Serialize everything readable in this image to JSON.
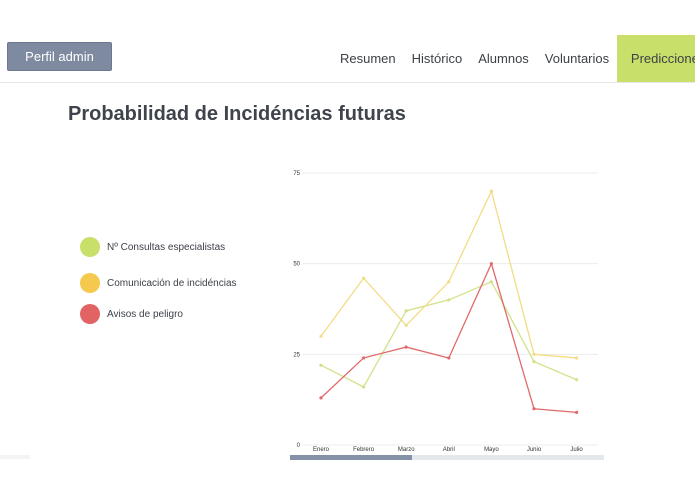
{
  "header": {
    "admin_button": "Perfil admin",
    "nav": [
      {
        "label": "Resumen"
      },
      {
        "label": "Histórico"
      },
      {
        "label": "Alumnos"
      },
      {
        "label": "Voluntarios"
      },
      {
        "label": "Predicciones",
        "active": true
      }
    ],
    "active_color": "#c8e06a"
  },
  "page": {
    "title": "Probabilidad de Incidéncias futuras"
  },
  "legend": [
    {
      "label": "Nº Consultas especialistas",
      "color": "#c8e06a"
    },
    {
      "label": "Comunicación de incidéncias",
      "color": "#f5c84e"
    },
    {
      "label": "Avisos de peligro",
      "color": "#e26363"
    }
  ],
  "chart_data": {
    "type": "line",
    "categories": [
      "Enero",
      "Febrero",
      "Marzo",
      "Abril",
      "Mayo",
      "Junio",
      "Julio"
    ],
    "y_ticks": [
      "0",
      "25",
      "50",
      "75"
    ],
    "ylim": [
      0,
      75
    ],
    "grid": true,
    "series": [
      {
        "name": "Nº Consultas especialistas",
        "color": "#d2e289",
        "values": [
          22,
          16,
          37,
          40,
          45,
          23,
          18
        ]
      },
      {
        "name": "Comunicación de incidéncias",
        "color": "#f3dc86",
        "values": [
          30,
          46,
          33,
          45,
          70,
          25,
          24
        ]
      },
      {
        "name": "Avisos de peligro",
        "color": "#e06a6a",
        "values": [
          13,
          24,
          27,
          24,
          50,
          10,
          9
        ]
      }
    ]
  },
  "scrollbar": {
    "position_fraction": 0.0,
    "visible_fraction": 0.39
  }
}
